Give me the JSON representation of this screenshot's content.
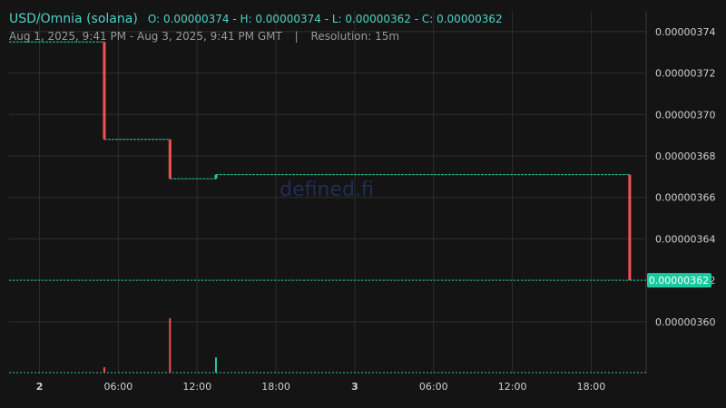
{
  "header": {
    "pair": "USD/Omnia (solana)",
    "ohlc": "O: 0.00000374 - H: 0.00000374 - L: 0.00000362 - C: 0.00000362",
    "range": "Aug 1, 2025, 9:41 PM - Aug 3, 2025, 9:41 PM GMT",
    "separator": "|",
    "resolution": "Resolution: 15m"
  },
  "watermark": "defined.fi",
  "last_price_label": "0.00000362",
  "colors": {
    "background": "#141414",
    "grid": "#2e2e2e",
    "up": "#26c6a6",
    "down": "#ef5350",
    "text": "#cfcfcf",
    "price_tag": "#1cc9a0"
  },
  "chart_data": {
    "type": "candlestick",
    "ylim": [
      3.575e-06,
      3.75e-06
    ],
    "y_ticks": [
      "0.00000374",
      "0.00000372",
      "0.00000370",
      "0.00000368",
      "0.00000366",
      "0.00000364",
      "0.00000362",
      "0.00000360"
    ],
    "x_ticks": [
      {
        "label": "2",
        "hours": 2.317,
        "bold": true
      },
      {
        "label": "06:00",
        "hours": 8.317,
        "bold": false
      },
      {
        "label": "12:00",
        "hours": 14.317,
        "bold": false
      },
      {
        "label": "18:00",
        "hours": 20.317,
        "bold": false
      },
      {
        "label": "3",
        "hours": 26.317,
        "bold": true
      },
      {
        "label": "06:00",
        "hours": 32.317,
        "bold": false
      },
      {
        "label": "12:00",
        "hours": 38.317,
        "bold": false
      },
      {
        "label": "18:00",
        "hours": 44.317,
        "bold": false
      }
    ],
    "segments": [
      {
        "from_hours": 0,
        "to_hours": 7.25,
        "price": 3.735e-06
      },
      {
        "from_hours": 7.25,
        "to_hours": 12.25,
        "price": 3.688e-06
      },
      {
        "from_hours": 12.25,
        "to_hours": 15.75,
        "price": 3.669e-06
      },
      {
        "from_hours": 15.75,
        "to_hours": 47.25,
        "price": 3.671e-06
      }
    ],
    "candles": [
      {
        "hours": 7.25,
        "open": 3.735e-06,
        "close": 3.688e-06,
        "direction": "down"
      },
      {
        "hours": 12.25,
        "open": 3.688e-06,
        "close": 3.669e-06,
        "direction": "down"
      },
      {
        "hours": 15.75,
        "open": 3.669e-06,
        "close": 3.671e-06,
        "direction": "up"
      },
      {
        "hours": 47.25,
        "open": 3.671e-06,
        "close": 3.62e-06,
        "direction": "down"
      }
    ],
    "volume": [
      {
        "hours": 7.25,
        "relative": 0.1,
        "direction": "down"
      },
      {
        "hours": 12.25,
        "relative": 1.0,
        "direction": "down"
      },
      {
        "hours": 15.75,
        "relative": 0.28,
        "direction": "up"
      }
    ],
    "last_price": 3.62e-06,
    "x_domain_hours": [
      0,
      48.5
    ]
  }
}
